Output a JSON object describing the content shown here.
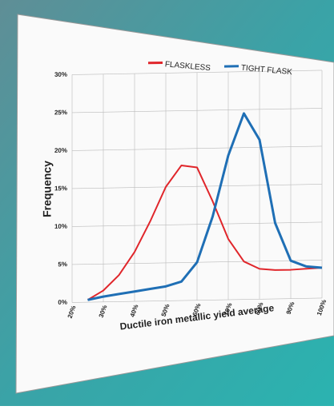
{
  "chart_data": {
    "type": "line",
    "xlabel": "Ductile iron metallic yield average",
    "ylabel": "Frequency",
    "x": [
      25,
      30,
      35,
      40,
      45,
      50,
      55,
      60,
      65,
      70,
      75,
      80,
      85,
      90,
      95,
      100
    ],
    "series": [
      {
        "name": "FLASKLESS",
        "color": "#e0262b",
        "values": [
          0.3,
          1.5,
          3.5,
          6.5,
          10.5,
          15,
          17.8,
          17.5,
          13,
          8,
          5,
          4,
          3.8,
          3.8,
          3.9,
          4
        ]
      },
      {
        "name": "TIGHT FLASK",
        "color": "#1f6fb5",
        "values": [
          0.3,
          0.7,
          1,
          1.3,
          1.6,
          1.9,
          2.5,
          5,
          11,
          19,
          24.5,
          21,
          10,
          5,
          4.2,
          4
        ]
      }
    ],
    "xlim": [
      20,
      100
    ],
    "xticks": [
      {
        "value": 20,
        "label": "20%"
      },
      {
        "value": 30,
        "label": "30%"
      },
      {
        "value": 40,
        "label": "40%"
      },
      {
        "value": 50,
        "label": "50%"
      },
      {
        "value": 60,
        "label": "60%"
      },
      {
        "value": 70,
        "label": "70%"
      },
      {
        "value": 80,
        "label": "80%"
      },
      {
        "value": 90,
        "label": "90%"
      },
      {
        "value": 100,
        "label": "100%"
      }
    ],
    "ylim": [
      0,
      30
    ],
    "yticks": [
      {
        "value": 0,
        "label": "0%"
      },
      {
        "value": 5,
        "label": "5%"
      },
      {
        "value": 10,
        "label": "10%"
      },
      {
        "value": 15,
        "label": "15%"
      },
      {
        "value": 20,
        "label": "20%"
      },
      {
        "value": 25,
        "label": "25%"
      },
      {
        "value": 30,
        "label": "30%"
      }
    ],
    "grid": true
  }
}
